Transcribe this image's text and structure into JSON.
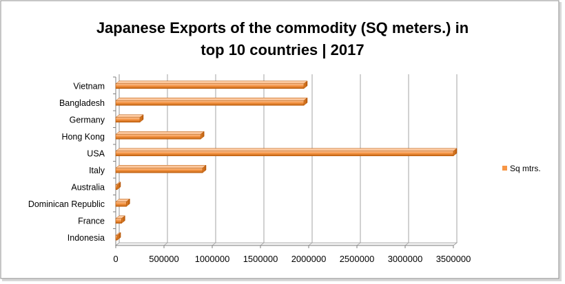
{
  "chart_data": {
    "type": "bar",
    "orientation": "horizontal",
    "title_lines": [
      "Japanese Exports of the commodity (SQ meters.) in",
      "top 10 countries | 2017"
    ],
    "categories": [
      "Vietnam",
      "Bangladesh",
      "Germany",
      "Hong Kong",
      "USA",
      "Italy",
      "Australia",
      "Dominican Republic",
      "France",
      "Indonesia"
    ],
    "series": [
      {
        "name": "Sq mtrs.",
        "values": [
          1950000,
          1950000,
          250000,
          880000,
          3500000,
          900000,
          10000,
          110000,
          60000,
          15000
        ]
      }
    ],
    "xlim": [
      0,
      3500000
    ],
    "x_ticks": [
      "0",
      "500000",
      "1000000",
      "1500000",
      "2000000",
      "2500000",
      "3000000",
      "3500000"
    ],
    "grid": true,
    "legend_position": "right",
    "colors": {
      "bar": "#F79646",
      "bar_dark": "#B65708",
      "bar_light": "#FBC79D",
      "grid": "#8c8c8c"
    }
  }
}
